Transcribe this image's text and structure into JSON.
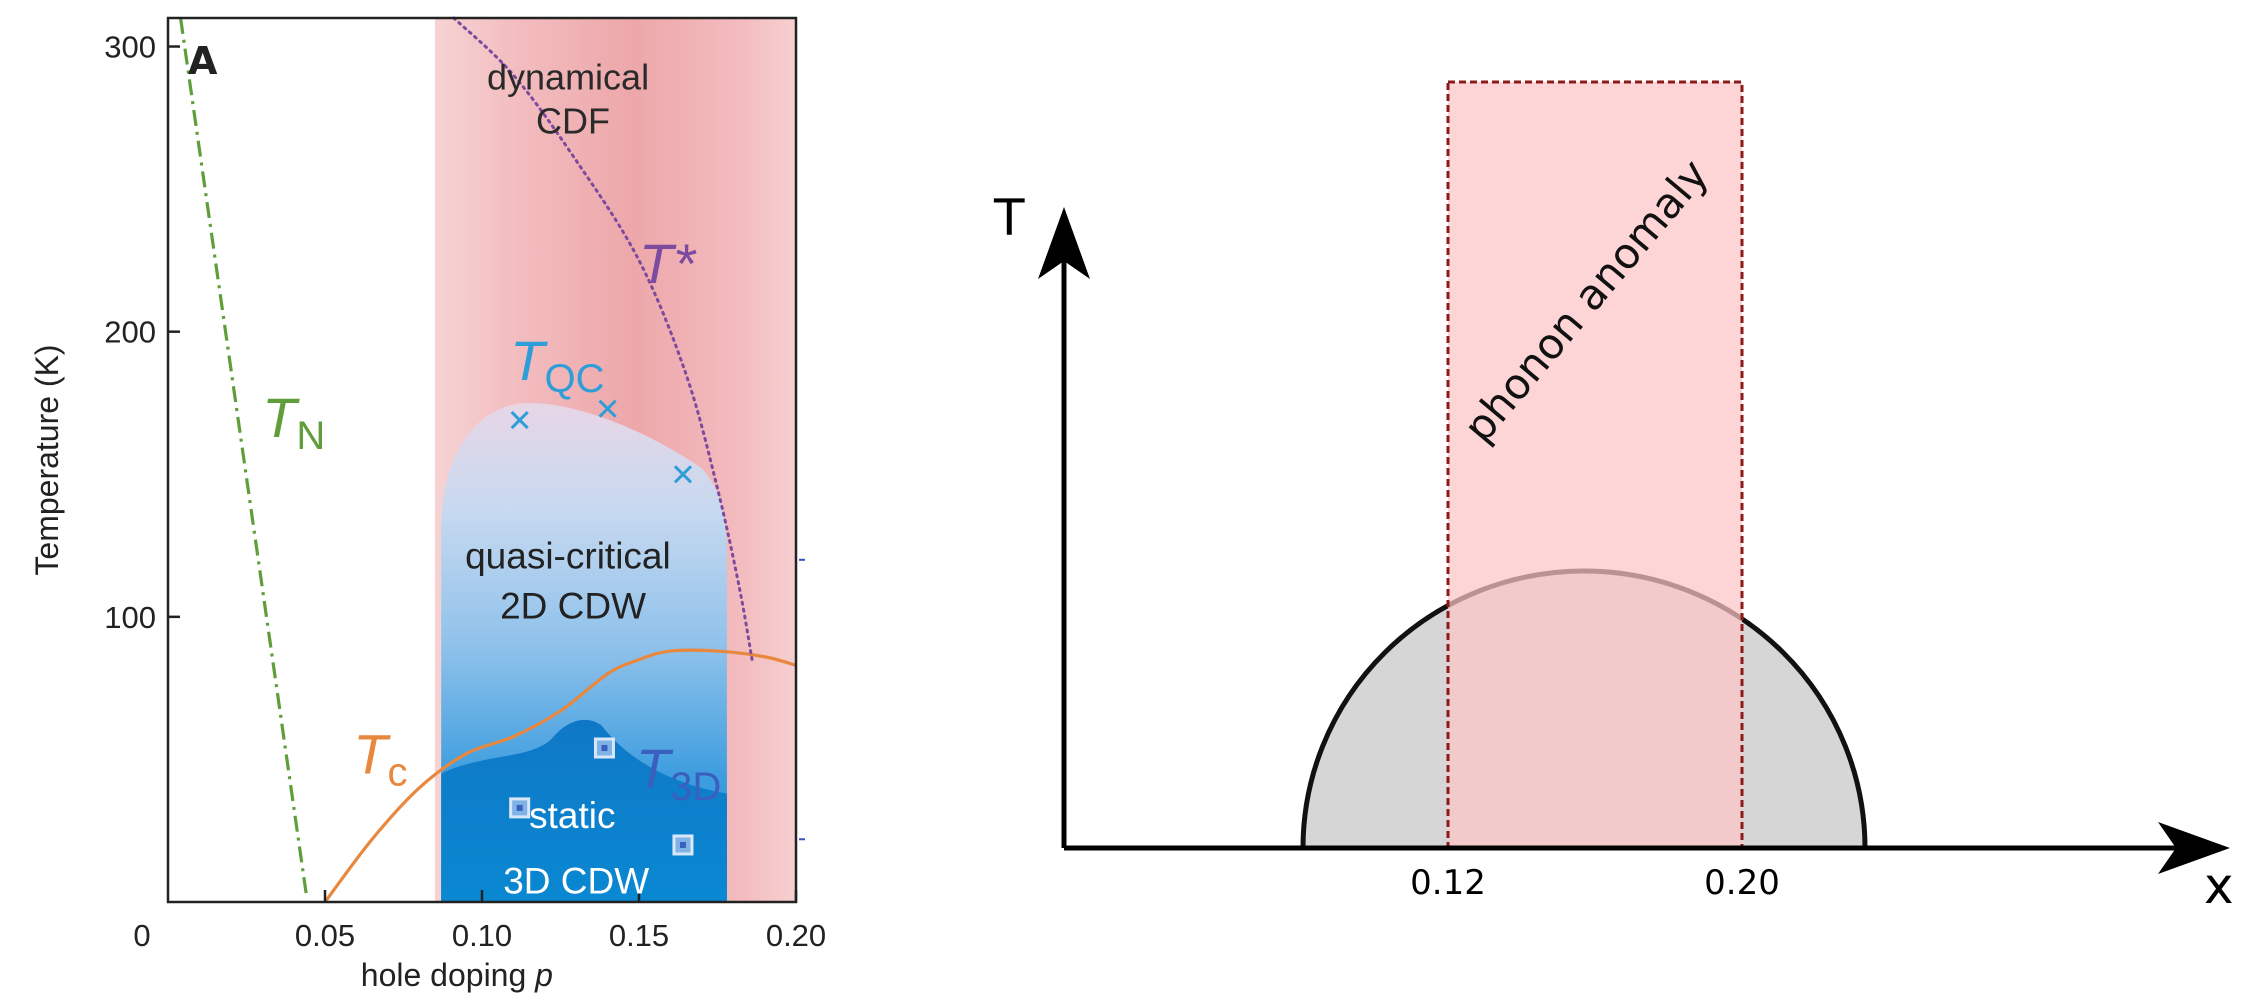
{
  "chart_data": [
    {
      "type": "line",
      "panel_label": "A",
      "xlabel": "hole doping",
      "xlabel_symbol": "p",
      "ylabel": "Temperature (K)",
      "xlim": [
        0,
        0.2
      ],
      "ylim": [
        0,
        310
      ],
      "x_ticks": [
        {
          "value": 0,
          "label": "0"
        },
        {
          "value": 0.05,
          "label": "0.05"
        },
        {
          "value": 0.1,
          "label": "0.10"
        },
        {
          "value": 0.15,
          "label": "0.15"
        },
        {
          "value": 0.2,
          "label": "0.20"
        }
      ],
      "y_ticks": [
        {
          "value": 100,
          "label": "100"
        },
        {
          "value": 200,
          "label": "200"
        },
        {
          "value": 300,
          "label": "300"
        }
      ],
      "series": [
        {
          "name": "T_N",
          "label_main": "T",
          "label_sub": "N",
          "color": "#5f9e3a",
          "style": "dash-dot",
          "points": [
            [
              0.004,
              310
            ],
            [
              0.044,
              3
            ]
          ]
        },
        {
          "name": "T_c",
          "label_main": "T",
          "label_sub": "c",
          "color": "#e8883f",
          "style": "solid",
          "points": [
            [
              0.05,
              0
            ],
            [
              0.065,
              22
            ],
            [
              0.08,
              40
            ],
            [
              0.095,
              52
            ],
            [
              0.11,
              58
            ],
            [
              0.125,
              67
            ],
            [
              0.14,
              80
            ],
            [
              0.15,
              85
            ],
            [
              0.16,
              88
            ],
            [
              0.175,
              88
            ],
            [
              0.19,
              86
            ],
            [
              0.2,
              83
            ]
          ]
        },
        {
          "name": "T*",
          "label_main": "T*",
          "color": "#7c4a9e",
          "style": "dotted",
          "points": [
            [
              0.091,
              310
            ],
            [
              0.11,
              290
            ],
            [
              0.13,
              260
            ],
            [
              0.15,
              225
            ],
            [
              0.165,
              185
            ],
            [
              0.175,
              145
            ],
            [
              0.182,
              110
            ],
            [
              0.186,
              85
            ]
          ]
        },
        {
          "name": "T_QC",
          "label_main": "T",
          "label_sub": "QC",
          "color": "#2e9ed8",
          "style": "markers-x",
          "points": [
            [
              0.112,
              169
            ],
            [
              0.14,
              173
            ],
            [
              0.164,
              150
            ]
          ]
        },
        {
          "name": "T_3D",
          "label_main": "T",
          "label_sub": "3D",
          "color": "#3b5fbf",
          "style": "markers-square",
          "points": [
            [
              0.112,
              33
            ],
            [
              0.139,
              54
            ],
            [
              0.164,
              20
            ]
          ]
        }
      ],
      "regions": [
        {
          "label_lines": [
            "dynamical",
            "CDF"
          ],
          "x_range": [
            0.085,
            0.2
          ],
          "color": "#f2b1b3"
        },
        {
          "label_lines": [
            "quasi-critical",
            "2D CDW"
          ],
          "x_range": [
            0.087,
            0.178
          ],
          "top": 175,
          "color": "#7bb6e6"
        },
        {
          "label_lines": [
            "static",
            "3D CDW"
          ],
          "x_range": [
            0.087,
            0.178
          ],
          "top": 65,
          "color": "#0b7fcf"
        }
      ]
    },
    {
      "type": "diagram",
      "x_axis_label": "x",
      "y_axis_label": "T",
      "x_ticks": [
        "0.12",
        "0.20"
      ],
      "x_range": [
        0.08,
        0.36
      ],
      "region": {
        "label": "phonon anomaly",
        "x_range": [
          0.12,
          0.2
        ],
        "color": "#fcc5c6",
        "border_color": "#8b1a1a"
      },
      "dome": {
        "x_range": [
          0.08,
          0.235
        ],
        "color": "#d6d6d6"
      }
    }
  ]
}
